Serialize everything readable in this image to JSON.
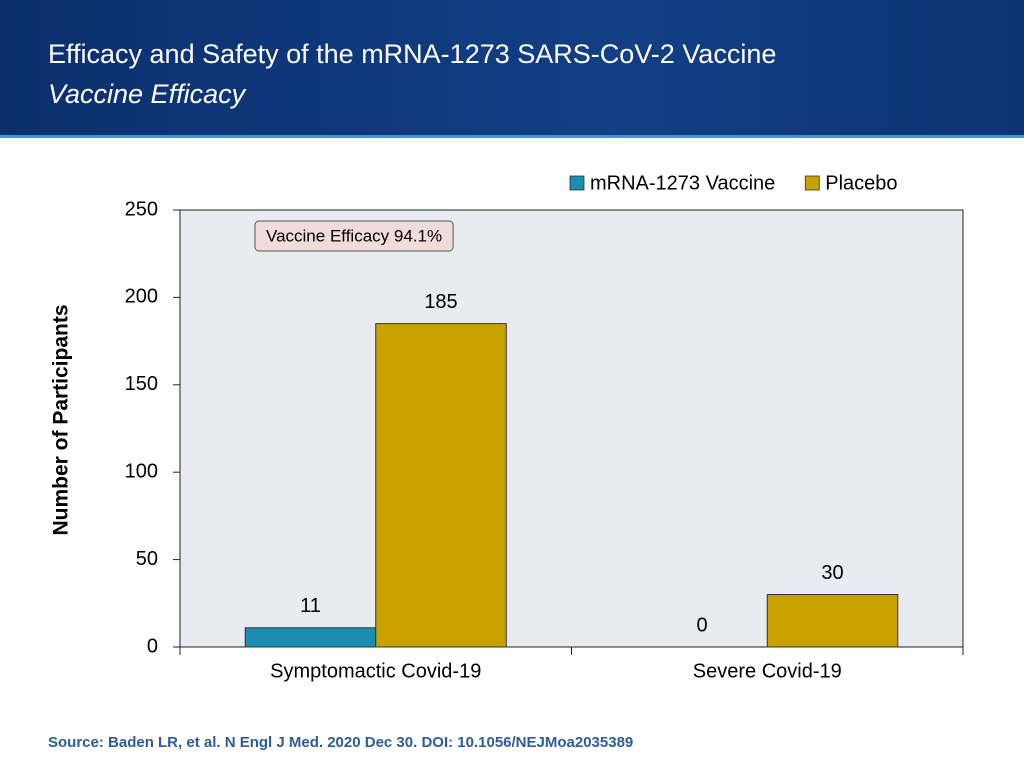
{
  "header": {
    "title": "Efficacy and Safety of the mRNA-1273 SARS-CoV-2 Vaccine",
    "subtitle": "Vaccine Efficacy"
  },
  "chart_data": {
    "type": "bar",
    "categories": [
      "Symptomactic Covid-19",
      "Severe Covid-19"
    ],
    "series": [
      {
        "name": "mRNA-1273 Vaccine",
        "color": "#1b8db0",
        "values": [
          11,
          0
        ]
      },
      {
        "name": "Placebo",
        "color": "#c9a200",
        "values": [
          185,
          30
        ]
      }
    ],
    "ylabel": "Number of Participants",
    "ylim": [
      0,
      250
    ],
    "yticks": [
      0,
      50,
      100,
      150,
      200,
      250
    ],
    "annotation": "Vaccine Efficacy 94.1%",
    "legend": "top-right"
  },
  "footer": {
    "source": "Source: Baden LR, et al. N Engl J Med. 2020 Dec 30. DOI: 10.1056/NEJMoa2035389"
  }
}
